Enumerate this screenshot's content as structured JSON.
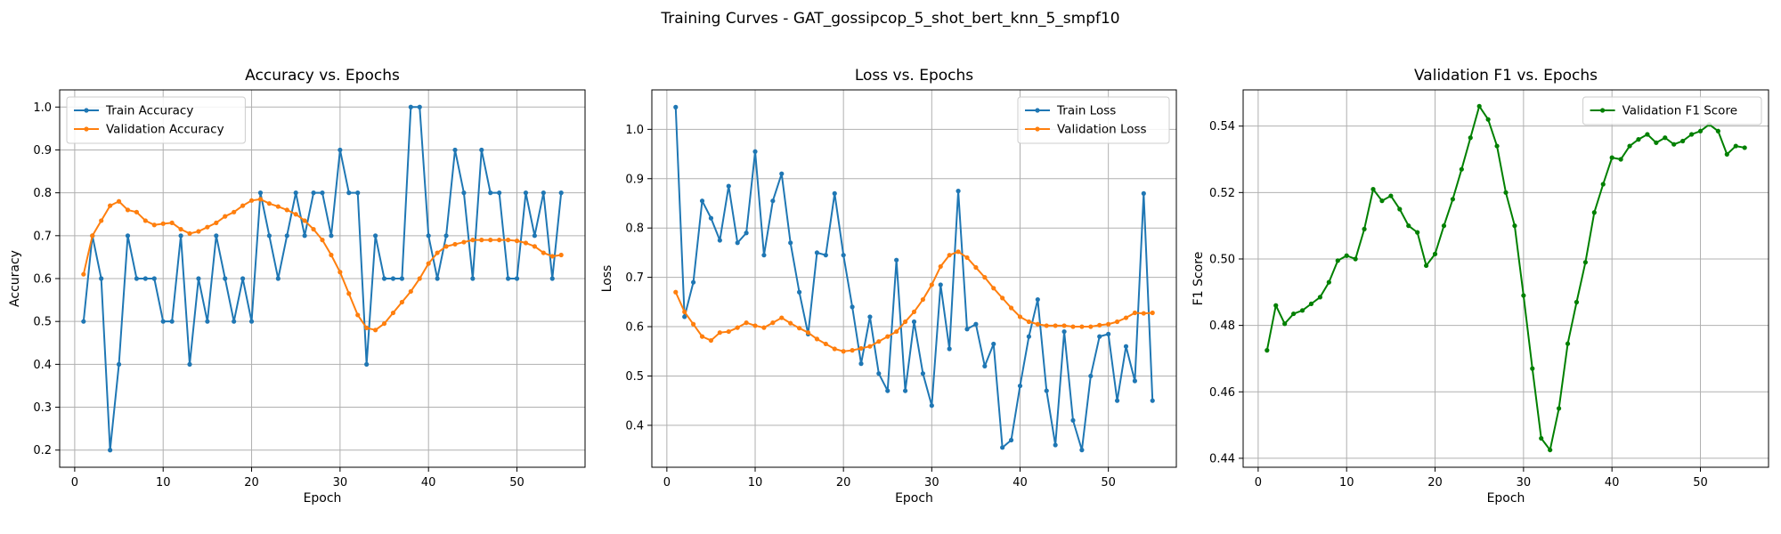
{
  "figure": {
    "suptitle": "Training Curves - GAT_gossipcop_5_shot_bert_knn_5_smpf10"
  },
  "colors": {
    "train": "#1f77b4",
    "validation": "#ff7f0e",
    "f1": "#008000",
    "grid": "#b0b0b0"
  },
  "chart_data": [
    {
      "type": "line",
      "title": "Accuracy vs. Epochs",
      "xlabel": "Epoch",
      "ylabel": "Accuracy",
      "xlim": [
        -1.7,
        57.7
      ],
      "ylim": [
        0.16,
        1.04
      ],
      "xticks": [
        0,
        10,
        20,
        30,
        40,
        50
      ],
      "yticks": [
        0.2,
        0.3,
        0.4,
        0.5,
        0.6,
        0.7,
        0.8,
        0.9,
        1.0
      ],
      "ytick_labels": [
        "0.2",
        "0.3",
        "0.4",
        "0.5",
        "0.6",
        "0.7",
        "0.8",
        "0.9",
        "1.0"
      ],
      "grid": true,
      "legend": "upper-left",
      "series": [
        {
          "name": "Train Accuracy",
          "color": "#1f77b4",
          "values": [
            0.5,
            0.7,
            0.6,
            0.2,
            0.4,
            0.7,
            0.6,
            0.6,
            0.6,
            0.5,
            0.5,
            0.7,
            0.4,
            0.6,
            0.5,
            0.7,
            0.6,
            0.5,
            0.6,
            0.5,
            0.8,
            0.7,
            0.6,
            0.7,
            0.8,
            0.7,
            0.8,
            0.8,
            0.7,
            0.9,
            0.8,
            0.8,
            0.4,
            0.7,
            0.6,
            0.6,
            0.6,
            1.0,
            1.0,
            0.7,
            0.6,
            0.7,
            0.9,
            0.8,
            0.6,
            0.9,
            0.8,
            0.8,
            0.6,
            0.6,
            0.8,
            0.7,
            0.8,
            0.6,
            0.8
          ]
        },
        {
          "name": "Validation Accuracy",
          "color": "#ff7f0e",
          "values": [
            0.61,
            0.7,
            0.735,
            0.77,
            0.78,
            0.76,
            0.755,
            0.735,
            0.725,
            0.728,
            0.73,
            0.715,
            0.705,
            0.71,
            0.72,
            0.73,
            0.745,
            0.755,
            0.77,
            0.782,
            0.785,
            0.775,
            0.768,
            0.76,
            0.75,
            0.735,
            0.715,
            0.69,
            0.655,
            0.615,
            0.565,
            0.515,
            0.485,
            0.48,
            0.495,
            0.52,
            0.545,
            0.57,
            0.6,
            0.635,
            0.66,
            0.675,
            0.68,
            0.685,
            0.69,
            0.69,
            0.69,
            0.69,
            0.69,
            0.688,
            0.683,
            0.675,
            0.66,
            0.652,
            0.655
          ]
        }
      ]
    },
    {
      "type": "line",
      "title": "Loss vs. Epochs",
      "xlabel": "Epoch",
      "ylabel": "Loss",
      "xlim": [
        -1.7,
        57.7
      ],
      "ylim": [
        0.315,
        1.08
      ],
      "xticks": [
        0,
        10,
        20,
        30,
        40,
        50
      ],
      "yticks": [
        0.4,
        0.5,
        0.6,
        0.7,
        0.8,
        0.9,
        1.0
      ],
      "ytick_labels": [
        "0.4",
        "0.5",
        "0.6",
        "0.7",
        "0.8",
        "0.9",
        "1.0"
      ],
      "grid": true,
      "legend": "upper-right",
      "series": [
        {
          "name": "Train Loss",
          "color": "#1f77b4",
          "values": [
            1.045,
            0.62,
            0.69,
            0.855,
            0.82,
            0.775,
            0.885,
            0.77,
            0.79,
            0.955,
            0.745,
            0.855,
            0.91,
            0.77,
            0.67,
            0.585,
            0.75,
            0.745,
            0.87,
            0.745,
            0.64,
            0.525,
            0.62,
            0.505,
            0.47,
            0.735,
            0.47,
            0.61,
            0.505,
            0.44,
            0.685,
            0.555,
            0.875,
            0.595,
            0.605,
            0.52,
            0.565,
            0.355,
            0.37,
            0.48,
            0.58,
            0.655,
            0.47,
            0.36,
            0.59,
            0.41,
            0.35,
            0.5,
            0.58,
            0.585,
            0.45,
            0.56,
            0.49,
            0.87,
            0.45
          ]
        },
        {
          "name": "Validation Loss",
          "color": "#ff7f0e",
          "values": [
            0.67,
            0.63,
            0.605,
            0.58,
            0.572,
            0.588,
            0.59,
            0.598,
            0.608,
            0.602,
            0.598,
            0.608,
            0.618,
            0.607,
            0.597,
            0.588,
            0.575,
            0.565,
            0.555,
            0.55,
            0.552,
            0.556,
            0.56,
            0.57,
            0.58,
            0.59,
            0.61,
            0.63,
            0.655,
            0.685,
            0.722,
            0.745,
            0.752,
            0.74,
            0.72,
            0.7,
            0.678,
            0.658,
            0.638,
            0.62,
            0.61,
            0.605,
            0.602,
            0.602,
            0.602,
            0.6,
            0.6,
            0.6,
            0.603,
            0.605,
            0.61,
            0.618,
            0.628,
            0.627,
            0.628
          ]
        }
      ]
    },
    {
      "type": "line",
      "title": "Validation F1 vs. Epochs",
      "xlabel": "Epoch",
      "ylabel": "F1 Score",
      "xlim": [
        -1.7,
        57.7
      ],
      "ylim": [
        0.4373,
        0.5509
      ],
      "xticks": [
        0,
        10,
        20,
        30,
        40,
        50
      ],
      "yticks": [
        0.44,
        0.46,
        0.48,
        0.5,
        0.52,
        0.54
      ],
      "ytick_labels": [
        "0.44",
        "0.46",
        "0.48",
        "0.50",
        "0.52",
        "0.54"
      ],
      "grid": true,
      "legend": "upper-right",
      "series": [
        {
          "name": "Validation F1 Score",
          "color": "#008000",
          "values": [
            0.4725,
            0.486,
            0.4805,
            0.4835,
            0.4845,
            0.4865,
            0.4885,
            0.493,
            0.4995,
            0.501,
            0.5,
            0.509,
            0.521,
            0.5175,
            0.519,
            0.515,
            0.51,
            0.508,
            0.498,
            0.5015,
            0.51,
            0.518,
            0.527,
            0.5365,
            0.546,
            0.542,
            0.534,
            0.52,
            0.51,
            0.489,
            0.467,
            0.446,
            0.4425,
            0.455,
            0.4745,
            0.487,
            0.499,
            0.514,
            0.5225,
            0.5305,
            0.53,
            0.534,
            0.536,
            0.5375,
            0.535,
            0.5365,
            0.5345,
            0.5355,
            0.5375,
            0.5385,
            0.5405,
            0.5385,
            0.5315,
            0.534,
            0.5335
          ]
        }
      ]
    }
  ]
}
